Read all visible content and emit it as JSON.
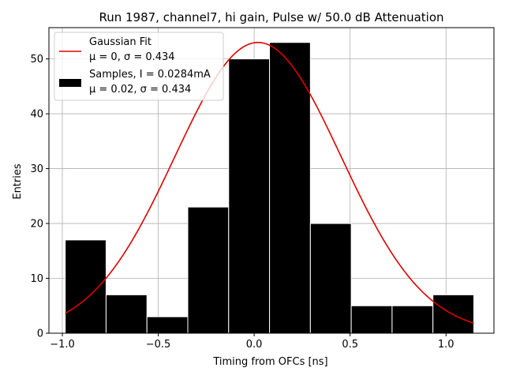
{
  "chart_data": {
    "type": "bar",
    "title": "Run 1987, channel7, hi gain, Pulse w/ 50.0 dB Attenuation",
    "xlabel": "Timing from OFCs [ns]",
    "ylabel": "Entries",
    "xlim": [
      -1.07,
      1.25
    ],
    "ylim": [
      0,
      55.7
    ],
    "xticks": [
      -1.0,
      -0.5,
      0.0,
      0.5,
      1.0
    ],
    "xtick_labels": [
      "−1.0",
      "−0.5",
      "0.0",
      "0.5",
      "1.0"
    ],
    "yticks": [
      0,
      10,
      20,
      30,
      40,
      50
    ],
    "ytick_labels": [
      "0",
      "10",
      "20",
      "30",
      "40",
      "50"
    ],
    "grid": true,
    "legend_position": "top-left",
    "histogram": {
      "name": "Samples, I = 0.0284mA",
      "stats": "μ = 0.02, σ = 0.434",
      "color": "#000000",
      "edge_color": "#ffffff",
      "bin_edges": [
        -0.985,
        -0.772,
        -0.559,
        -0.346,
        -0.133,
        0.08,
        0.293,
        0.506,
        0.719,
        0.932,
        1.145
      ],
      "counts": [
        17,
        7,
        3,
        23,
        50,
        53,
        20,
        5,
        5,
        7
      ]
    },
    "fit": {
      "name": "Gaussian Fit",
      "stats": "μ = 0, σ = 0.434",
      "color": "#e00000",
      "amplitude": 53.0,
      "mu": 0.02,
      "sigma": 0.434
    }
  }
}
